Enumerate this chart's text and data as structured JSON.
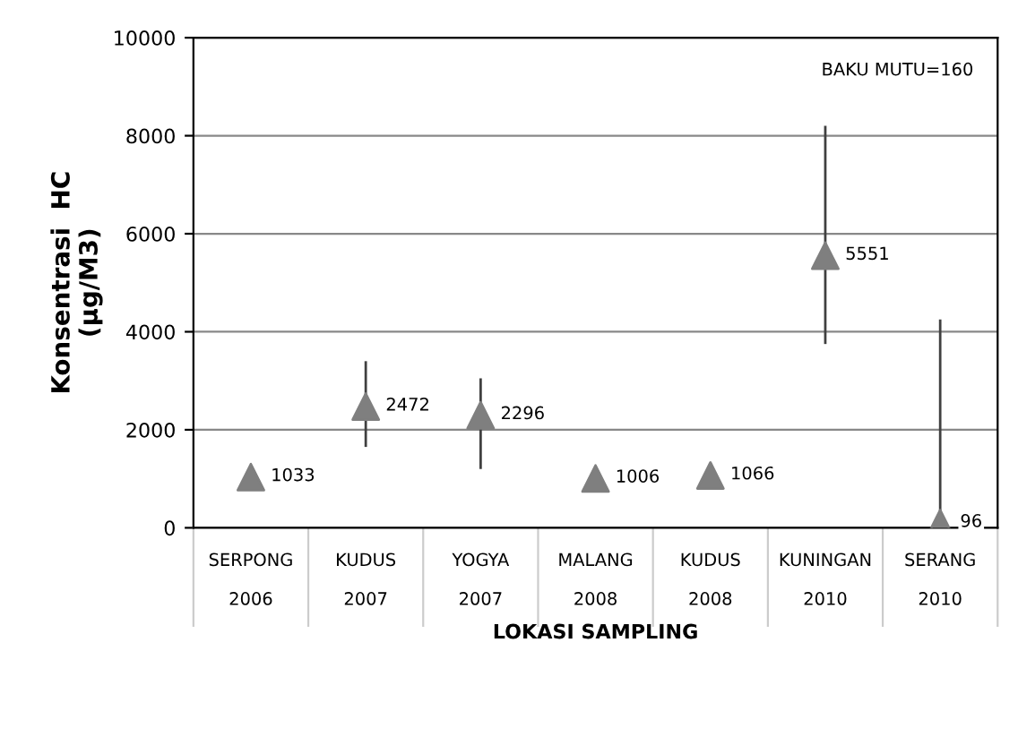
{
  "chart_data": {
    "type": "scatter",
    "xlabel": "LOKASI SAMPLING",
    "ylabel": "Konsentrasi  HC\n(µg/M3)",
    "categories": [
      "SERPONG\n\n2006",
      "KUDUS\n\n2007",
      "YOGYA\n\n2007",
      "MALANG\n\n2008",
      "KUDUS\n\n2008",
      "KUNINGAN\n\n2010",
      "SERANG\n\n2010"
    ],
    "series": [
      {
        "color": "#7f7f7f",
        "values": [
          1033,
          2472,
          2296,
          1006,
          1066,
          5551,
          96
        ],
        "errors": [
          null,
          [
            1650,
            3400
          ],
          [
            1200,
            3050
          ],
          null,
          null,
          [
            3750,
            8200
          ],
          [
            0,
            4250
          ]
        ]
      }
    ],
    "ylim": [
      0,
      10000
    ],
    "yticks": [
      0,
      2000,
      4000,
      6000,
      8000,
      10000
    ],
    "grid": "y",
    "marker": "triangle",
    "data_labels": true,
    "annotations": [
      "BAKU MUTU=160"
    ]
  }
}
